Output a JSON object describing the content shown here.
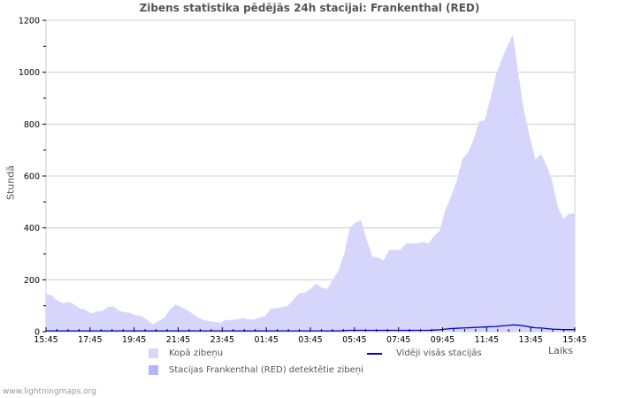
{
  "title": "Zibens statistika pēdējās 24h stacijai: Frankenthal (RED)",
  "y_axis_label": "Stundā",
  "x_axis_label": "Laiks",
  "footer": "www.lightningmaps.org",
  "colors": {
    "total_fill": "#d6d6fc",
    "station_fill": "#b4b4f8",
    "average_line": "#0000cc",
    "grid": "#cccccc"
  },
  "legend": {
    "total": "Kopā zibeņu",
    "station": "Stacijas Frankenthal (RED) detektētie zibeņi",
    "average": "Vidēji visās stacijās"
  },
  "chart_data": {
    "type": "area",
    "title": "Zibens statistika pēdējās 24h stacijai: Frankenthal (RED)",
    "xlabel": "Laiks",
    "ylabel": "Stundā",
    "ylim": [
      0,
      1200
    ],
    "yticks": [
      0,
      200,
      400,
      600,
      800,
      1000,
      1200
    ],
    "xticks": [
      "15:45",
      "17:45",
      "19:45",
      "21:45",
      "23:45",
      "01:45",
      "03:45",
      "05:45",
      "07:45",
      "09:45",
      "11:45",
      "13:45",
      "15:45"
    ],
    "grid": true,
    "legend_position": "bottom",
    "series": [
      {
        "name": "Kopā zibeņu",
        "kind": "area",
        "values": [
          145,
          140,
          120,
          110,
          115,
          105,
          90,
          85,
          70,
          78,
          80,
          95,
          98,
          80,
          75,
          72,
          62,
          60,
          45,
          28,
          40,
          55,
          85,
          105,
          95,
          85,
          70,
          55,
          45,
          40,
          38,
          35,
          45,
          45,
          48,
          52,
          48,
          47,
          55,
          60,
          90,
          90,
          95,
          100,
          125,
          148,
          150,
          165,
          185,
          170,
          165,
          200,
          235,
          300,
          400,
          420,
          430,
          355,
          290,
          285,
          275,
          315,
          315,
          315,
          340,
          340,
          340,
          345,
          340,
          370,
          390,
          470,
          520,
          580,
          665,
          690,
          740,
          810,
          815,
          900,
          990,
          1050,
          1100,
          1145,
          990,
          850,
          750,
          665,
          685,
          640,
          580,
          480,
          435,
          455,
          455
        ]
      },
      {
        "name": "Stacijas Frankenthal (RED) detektētie zibeņi",
        "kind": "area",
        "values": []
      },
      {
        "name": "Vidēji visās stacijās",
        "kind": "line",
        "values": [
          3,
          3,
          3,
          3,
          3,
          3,
          3,
          3,
          3,
          3,
          3,
          3,
          3,
          3,
          3,
          3,
          3,
          3,
          3,
          3,
          3,
          3,
          3,
          3,
          3,
          3,
          3,
          3,
          3,
          3,
          3,
          3,
          3,
          3,
          3,
          3,
          3,
          3,
          3,
          3,
          3,
          3,
          3,
          3,
          3,
          3,
          3,
          3,
          3,
          3,
          3,
          3,
          3,
          4,
          5,
          5,
          5,
          5,
          5,
          5,
          5,
          5,
          5,
          5,
          5,
          5,
          5,
          5,
          5,
          6,
          7,
          10,
          12,
          13,
          14,
          15,
          16,
          17,
          18,
          19,
          20,
          22,
          24,
          26,
          25,
          22,
          18,
          15,
          14,
          12,
          10,
          9,
          8,
          8,
          8
        ]
      }
    ]
  }
}
